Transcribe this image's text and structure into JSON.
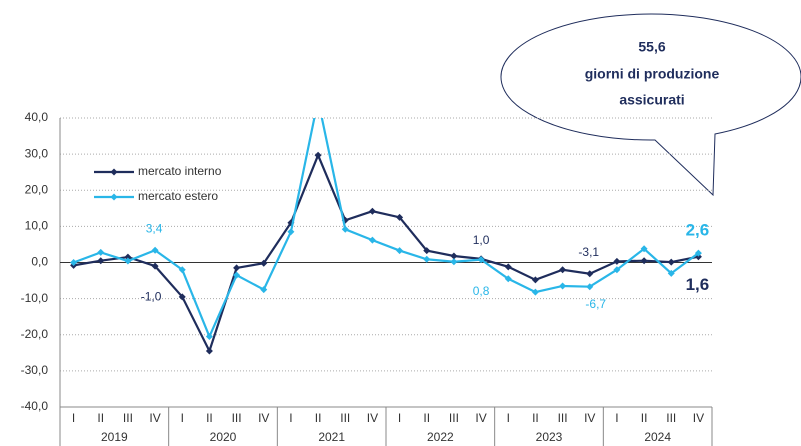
{
  "chart_data": {
    "type": "line",
    "categories": [
      "I",
      "II",
      "III",
      "IV",
      "I",
      "II",
      "III",
      "IV",
      "I",
      "II",
      "III",
      "IV",
      "I",
      "II",
      "III",
      "IV",
      "I",
      "II",
      "III",
      "IV",
      "I",
      "II",
      "III",
      "IV"
    ],
    "year_groups": [
      "2019",
      "2020",
      "2021",
      "2022",
      "2023",
      "2024"
    ],
    "series": [
      {
        "name": "mercato interno",
        "color": "#1f2d5c",
        "values": [
          -0.8,
          0.5,
          1.5,
          -1.0,
          -9.5,
          -24.5,
          -1.5,
          -0.2,
          11.0,
          29.7,
          11.7,
          14.2,
          12.5,
          3.3,
          1.8,
          1.0,
          -1.2,
          -4.8,
          -2.0,
          -3.1,
          0.3,
          0.5,
          0.1,
          1.6
        ],
        "value_labels": [
          null,
          null,
          null,
          "-1,0",
          null,
          null,
          null,
          null,
          null,
          null,
          null,
          null,
          null,
          null,
          null,
          "1,0",
          null,
          null,
          null,
          "-3,1",
          null,
          null,
          null,
          "1,6"
        ]
      },
      {
        "name": "mercato estero",
        "color": "#29b6e8",
        "values": [
          0.0,
          2.8,
          0.4,
          3.4,
          -2.0,
          -20.5,
          -3.5,
          -7.5,
          8.5,
          45.0,
          9.2,
          6.2,
          3.3,
          0.9,
          0.2,
          0.8,
          -4.5,
          -8.2,
          -6.5,
          -6.7,
          -2.0,
          3.8,
          -3.0,
          2.6
        ],
        "value_labels": [
          null,
          null,
          null,
          "3,4",
          null,
          null,
          null,
          null,
          null,
          null,
          null,
          null,
          null,
          null,
          null,
          "0,8",
          null,
          null,
          null,
          "-6,7",
          null,
          null,
          null,
          "2,6"
        ]
      }
    ],
    "ylim": [
      -40,
      40
    ],
    "yticks": [
      {
        "value": -40,
        "label": "-40,0"
      },
      {
        "value": -30,
        "label": "-30,0"
      },
      {
        "value": -20,
        "label": "-20,0"
      },
      {
        "value": -10,
        "label": "-10,0"
      },
      {
        "value": 0,
        "label": "0,0"
      },
      {
        "value": 10,
        "label": "10,0"
      },
      {
        "value": 20,
        "label": "20,0"
      },
      {
        "value": 30,
        "label": "30,0"
      },
      {
        "value": 40,
        "label": "40,0"
      }
    ],
    "grid": true,
    "legend": "upper left",
    "annotation": [
      "55,6",
      "giorni di produzione",
      "assicurati"
    ]
  }
}
